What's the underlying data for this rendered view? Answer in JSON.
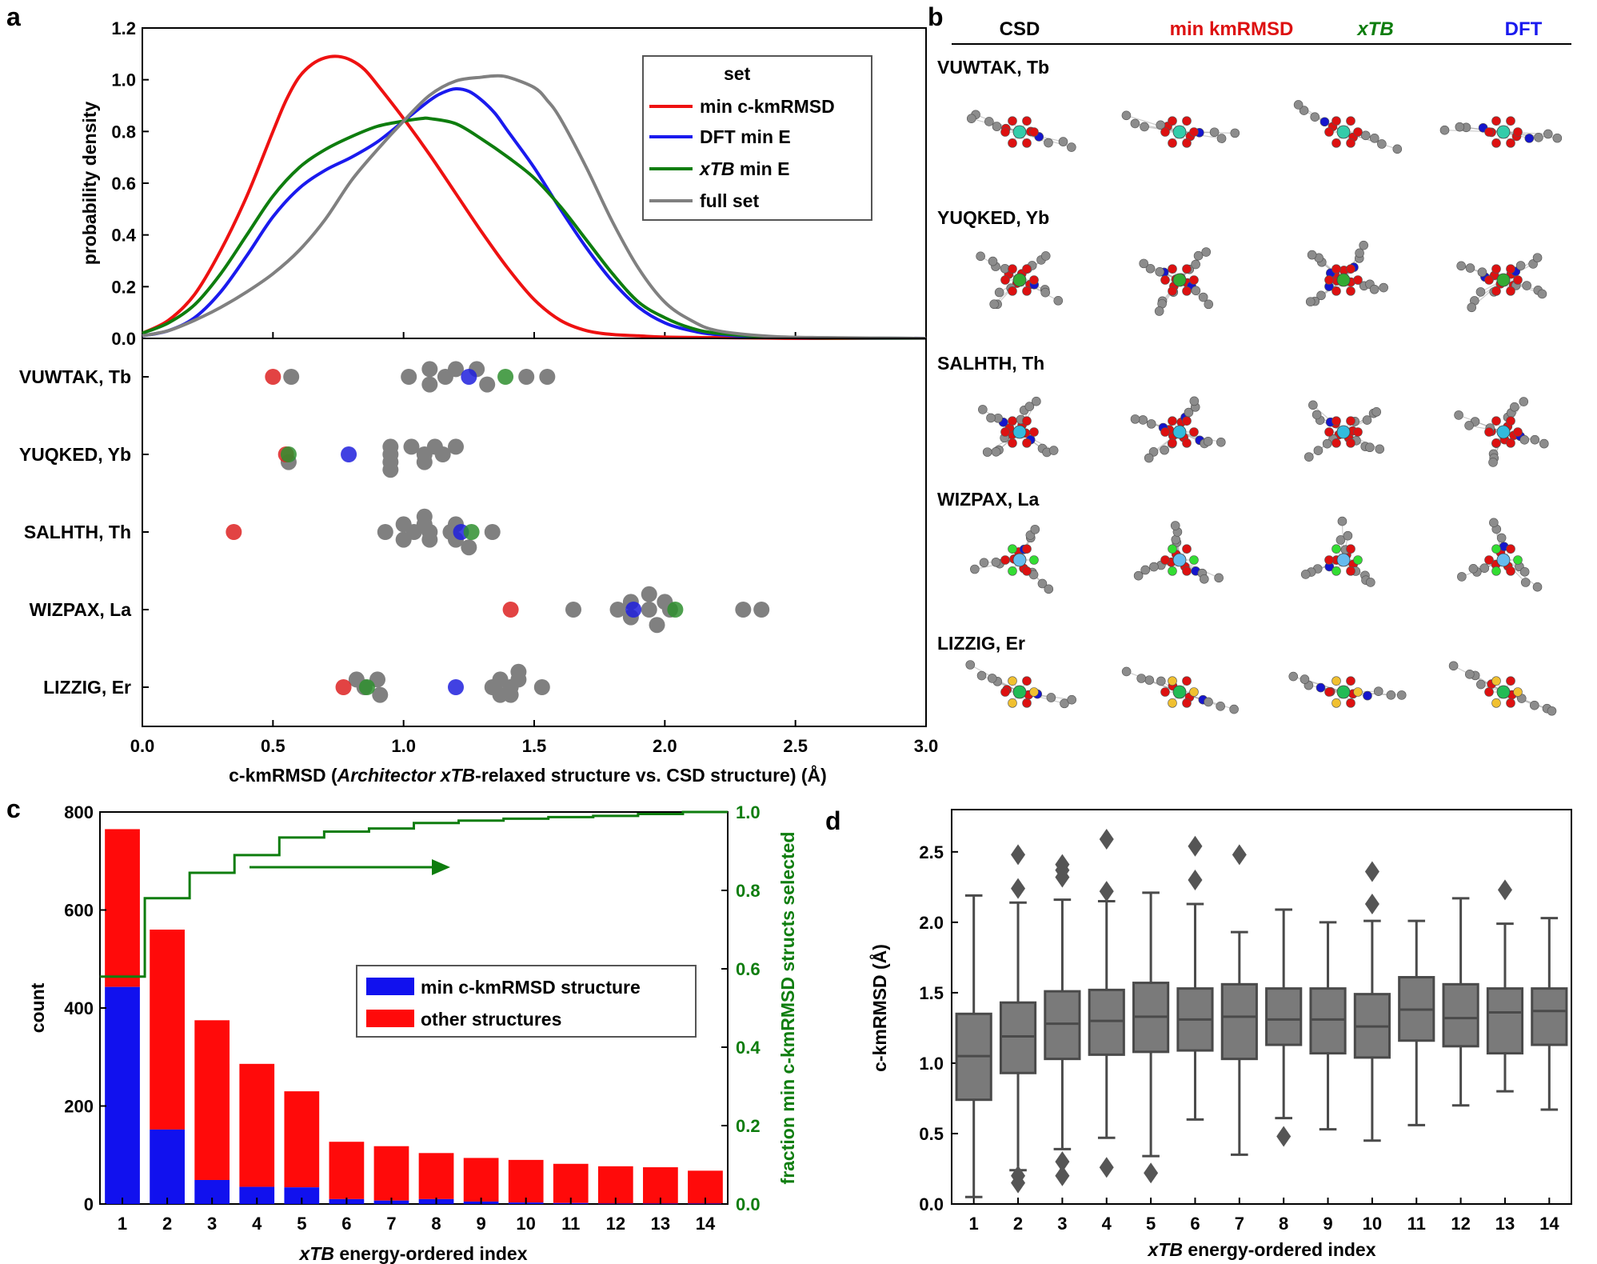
{
  "panel_letters": {
    "a": "a",
    "b": "b",
    "c": "c",
    "d": "d"
  },
  "colors": {
    "red": "#ee1111",
    "blue": "#1a1aee",
    "green": "#0e7d0e",
    "gray": "#808080",
    "bar_blue": "#1111ee",
    "bar_red": "#ff0a0a",
    "box_fill": "#7a7a7a",
    "box_edge": "#4a4a4a",
    "atom_gray": "#8c8c8c",
    "atom_red": "#dd1111",
    "atom_blue": "#1515cc",
    "atom_green": "#33dd33",
    "atom_yellow": "#f0c030",
    "atom_cyan": "#33bbdd",
    "atom_teal": "#33ccaa"
  },
  "chart_data": [
    {
      "id": "a-top",
      "type": "line",
      "title": "",
      "xlabel": "",
      "ylabel": "probability density",
      "xlim": [
        0,
        3
      ],
      "ylim": [
        0,
        1.2
      ],
      "yticks": [
        "0.0",
        "0.2",
        "0.4",
        "0.6",
        "0.8",
        "1.0",
        "1.2"
      ],
      "legend": {
        "title": "set",
        "position": "top-right"
      },
      "series": [
        {
          "name": "min c-kmRMSD",
          "color": "#ee1111",
          "x": [
            0,
            0.1,
            0.2,
            0.3,
            0.4,
            0.5,
            0.55,
            0.6,
            0.65,
            0.7,
            0.75,
            0.8,
            0.85,
            0.9,
            1.0,
            1.1,
            1.2,
            1.3,
            1.4,
            1.5,
            1.6,
            1.7,
            1.8,
            1.9,
            2.0,
            2.2,
            2.4,
            2.6,
            3.0
          ],
          "y": [
            0.02,
            0.07,
            0.17,
            0.34,
            0.55,
            0.8,
            0.92,
            1.01,
            1.06,
            1.085,
            1.09,
            1.075,
            1.04,
            0.98,
            0.85,
            0.71,
            0.56,
            0.41,
            0.27,
            0.15,
            0.07,
            0.03,
            0.015,
            0.01,
            0.005,
            0.003,
            0.001,
            0,
            0
          ]
        },
        {
          "name": "DFT min E",
          "color": "#1a1aee",
          "x": [
            0,
            0.1,
            0.2,
            0.3,
            0.4,
            0.5,
            0.6,
            0.7,
            0.8,
            0.9,
            1.0,
            1.1,
            1.15,
            1.2,
            1.25,
            1.3,
            1.35,
            1.4,
            1.5,
            1.6,
            1.7,
            1.8,
            1.9,
            2.0,
            2.1,
            2.2,
            2.4,
            2.6,
            3.0
          ],
          "y": [
            0.01,
            0.03,
            0.08,
            0.18,
            0.32,
            0.47,
            0.58,
            0.65,
            0.7,
            0.76,
            0.84,
            0.92,
            0.95,
            0.965,
            0.955,
            0.92,
            0.87,
            0.8,
            0.66,
            0.5,
            0.35,
            0.22,
            0.12,
            0.06,
            0.03,
            0.015,
            0.005,
            0.002,
            0
          ]
        },
        {
          "name": "xTB min E",
          "color": "#0e7d0e",
          "x": [
            0,
            0.1,
            0.2,
            0.3,
            0.4,
            0.5,
            0.6,
            0.7,
            0.8,
            0.9,
            1.0,
            1.07,
            1.1,
            1.2,
            1.3,
            1.4,
            1.5,
            1.6,
            1.7,
            1.8,
            1.9,
            2.0,
            2.1,
            2.2,
            2.4,
            2.6,
            3.0
          ],
          "y": [
            0.02,
            0.06,
            0.13,
            0.25,
            0.4,
            0.55,
            0.66,
            0.73,
            0.78,
            0.82,
            0.84,
            0.85,
            0.85,
            0.83,
            0.77,
            0.7,
            0.62,
            0.51,
            0.38,
            0.25,
            0.14,
            0.08,
            0.04,
            0.02,
            0.006,
            0.002,
            0
          ]
        },
        {
          "name": "full set",
          "color": "#808080",
          "x": [
            0,
            0.1,
            0.2,
            0.3,
            0.4,
            0.5,
            0.6,
            0.7,
            0.8,
            0.9,
            1.0,
            1.1,
            1.2,
            1.3,
            1.35,
            1.4,
            1.5,
            1.55,
            1.6,
            1.7,
            1.8,
            1.9,
            2.0,
            2.1,
            2.2,
            2.4,
            2.6,
            3.0
          ],
          "y": [
            0.01,
            0.03,
            0.07,
            0.12,
            0.18,
            0.25,
            0.34,
            0.46,
            0.61,
            0.73,
            0.84,
            0.94,
            0.995,
            1.01,
            1.015,
            1.01,
            0.97,
            0.92,
            0.85,
            0.66,
            0.45,
            0.27,
            0.14,
            0.07,
            0.03,
            0.008,
            0.003,
            0
          ]
        }
      ]
    },
    {
      "id": "a-bottom",
      "type": "scatter",
      "xlabel_parts": [
        "c-kmRMSD (",
        "Architector xTB",
        "-relaxed structure vs. CSD structure) (Å)"
      ],
      "xlim": [
        0,
        3
      ],
      "xticks": [
        "0.0",
        "0.5",
        "1.0",
        "1.5",
        "2.0",
        "2.5",
        "3.0"
      ],
      "categories": [
        "VUWTAK, Tb",
        "YUQKED, Yb",
        "SALHTH, Th",
        "WIZPAX, La",
        "LIZZIG, Er"
      ],
      "points": [
        {
          "row": 0,
          "x": 0.5,
          "dy": 0,
          "c": "red"
        },
        {
          "row": 0,
          "x": 0.57,
          "dy": 0,
          "c": "gray"
        },
        {
          "row": 0,
          "x": 1.02,
          "dy": 0,
          "c": "gray"
        },
        {
          "row": 0,
          "x": 1.1,
          "dy": -0.8,
          "c": "gray"
        },
        {
          "row": 0,
          "x": 1.16,
          "dy": 0,
          "c": "gray"
        },
        {
          "row": 0,
          "x": 1.1,
          "dy": 0.8,
          "c": "gray"
        },
        {
          "row": 0,
          "x": 1.2,
          "dy": -0.8,
          "c": "gray"
        },
        {
          "row": 0,
          "x": 1.25,
          "dy": 0,
          "c": "blue"
        },
        {
          "row": 0,
          "x": 1.28,
          "dy": -0.8,
          "c": "gray"
        },
        {
          "row": 0,
          "x": 1.32,
          "dy": 0.8,
          "c": "gray"
        },
        {
          "row": 0,
          "x": 1.39,
          "dy": 0,
          "c": "green"
        },
        {
          "row": 0,
          "x": 1.47,
          "dy": 0,
          "c": "gray"
        },
        {
          "row": 0,
          "x": 1.55,
          "dy": 0,
          "c": "gray"
        },
        {
          "row": 1,
          "x": 0.55,
          "dy": 0,
          "c": "red"
        },
        {
          "row": 1,
          "x": 0.56,
          "dy": 0,
          "c": "green"
        },
        {
          "row": 1,
          "x": 0.56,
          "dy": 0.8,
          "c": "gray"
        },
        {
          "row": 1,
          "x": 0.79,
          "dy": 0,
          "c": "blue"
        },
        {
          "row": 1,
          "x": 0.95,
          "dy": -0.8,
          "c": "gray"
        },
        {
          "row": 1,
          "x": 0.95,
          "dy": 0,
          "c": "gray"
        },
        {
          "row": 1,
          "x": 0.95,
          "dy": 0.8,
          "c": "gray"
        },
        {
          "row": 1,
          "x": 0.95,
          "dy": 1.6,
          "c": "gray"
        },
        {
          "row": 1,
          "x": 1.03,
          "dy": -0.8,
          "c": "gray"
        },
        {
          "row": 1,
          "x": 1.08,
          "dy": 0,
          "c": "gray"
        },
        {
          "row": 1,
          "x": 1.08,
          "dy": 0.8,
          "c": "gray"
        },
        {
          "row": 1,
          "x": 1.12,
          "dy": -0.8,
          "c": "gray"
        },
        {
          "row": 1,
          "x": 1.15,
          "dy": 0,
          "c": "gray"
        },
        {
          "row": 1,
          "x": 1.2,
          "dy": -0.8,
          "c": "gray"
        },
        {
          "row": 2,
          "x": 0.35,
          "dy": 0,
          "c": "red"
        },
        {
          "row": 2,
          "x": 0.93,
          "dy": 0,
          "c": "gray"
        },
        {
          "row": 2,
          "x": 1.0,
          "dy": -0.8,
          "c": "gray"
        },
        {
          "row": 2,
          "x": 1.0,
          "dy": 0.8,
          "c": "gray"
        },
        {
          "row": 2,
          "x": 1.04,
          "dy": 0,
          "c": "gray"
        },
        {
          "row": 2,
          "x": 1.08,
          "dy": -1.6,
          "c": "gray"
        },
        {
          "row": 2,
          "x": 1.08,
          "dy": -0.8,
          "c": "gray"
        },
        {
          "row": 2,
          "x": 1.1,
          "dy": 0,
          "c": "gray"
        },
        {
          "row": 2,
          "x": 1.1,
          "dy": 0.8,
          "c": "gray"
        },
        {
          "row": 2,
          "x": 1.18,
          "dy": 0,
          "c": "gray"
        },
        {
          "row": 2,
          "x": 1.2,
          "dy": -0.8,
          "c": "gray"
        },
        {
          "row": 2,
          "x": 1.2,
          "dy": 0.8,
          "c": "gray"
        },
        {
          "row": 2,
          "x": 1.22,
          "dy": 0,
          "c": "blue"
        },
        {
          "row": 2,
          "x": 1.26,
          "dy": 0,
          "c": "green"
        },
        {
          "row": 2,
          "x": 1.25,
          "dy": 1.6,
          "c": "gray"
        },
        {
          "row": 2,
          "x": 1.34,
          "dy": 0,
          "c": "gray"
        },
        {
          "row": 3,
          "x": 1.41,
          "dy": 0,
          "c": "red"
        },
        {
          "row": 3,
          "x": 1.65,
          "dy": 0,
          "c": "gray"
        },
        {
          "row": 3,
          "x": 1.82,
          "dy": 0,
          "c": "gray"
        },
        {
          "row": 3,
          "x": 1.87,
          "dy": -0.8,
          "c": "gray"
        },
        {
          "row": 3,
          "x": 1.88,
          "dy": 0,
          "c": "blue"
        },
        {
          "row": 3,
          "x": 1.87,
          "dy": 0.8,
          "c": "gray"
        },
        {
          "row": 3,
          "x": 1.94,
          "dy": -1.6,
          "c": "gray"
        },
        {
          "row": 3,
          "x": 1.94,
          "dy": 0,
          "c": "gray"
        },
        {
          "row": 3,
          "x": 1.97,
          "dy": 1.6,
          "c": "gray"
        },
        {
          "row": 3,
          "x": 2.0,
          "dy": -0.8,
          "c": "gray"
        },
        {
          "row": 3,
          "x": 2.02,
          "dy": 0,
          "c": "gray"
        },
        {
          "row": 3,
          "x": 2.04,
          "dy": 0,
          "c": "green"
        },
        {
          "row": 3,
          "x": 2.3,
          "dy": 0,
          "c": "gray"
        },
        {
          "row": 3,
          "x": 2.37,
          "dy": 0,
          "c": "gray"
        },
        {
          "row": 4,
          "x": 0.77,
          "dy": 0,
          "c": "red"
        },
        {
          "row": 4,
          "x": 0.82,
          "dy": -0.8,
          "c": "gray"
        },
        {
          "row": 4,
          "x": 0.85,
          "dy": 0,
          "c": "gray"
        },
        {
          "row": 4,
          "x": 0.86,
          "dy": 0,
          "c": "green"
        },
        {
          "row": 4,
          "x": 0.9,
          "dy": -0.8,
          "c": "gray"
        },
        {
          "row": 4,
          "x": 0.91,
          "dy": 0.8,
          "c": "gray"
        },
        {
          "row": 4,
          "x": 1.2,
          "dy": 0,
          "c": "blue"
        },
        {
          "row": 4,
          "x": 1.34,
          "dy": 0,
          "c": "gray"
        },
        {
          "row": 4,
          "x": 1.37,
          "dy": -0.8,
          "c": "gray"
        },
        {
          "row": 4,
          "x": 1.37,
          "dy": 0.8,
          "c": "gray"
        },
        {
          "row": 4,
          "x": 1.41,
          "dy": 0,
          "c": "gray"
        },
        {
          "row": 4,
          "x": 1.44,
          "dy": -0.8,
          "c": "gray"
        },
        {
          "row": 4,
          "x": 1.44,
          "dy": -1.6,
          "c": "gray"
        },
        {
          "row": 4,
          "x": 1.41,
          "dy": 0.8,
          "c": "gray"
        },
        {
          "row": 4,
          "x": 1.53,
          "dy": 0,
          "c": "gray"
        }
      ]
    },
    {
      "id": "c",
      "type": "bar",
      "stacked": true,
      "xlabel_parts": [
        "xTB",
        " energy-ordered index"
      ],
      "ylabel": "count",
      "y2label": "fraction min c-kmRMSD structs selected",
      "ylim": [
        0,
        800
      ],
      "y2lim": [
        0,
        1.0
      ],
      "yticks": [
        "0",
        "200",
        "400",
        "600",
        "800"
      ],
      "y2ticks": [
        "0.0",
        "0.2",
        "0.4",
        "0.6",
        "0.8",
        "1.0"
      ],
      "categories": [
        "1",
        "2",
        "3",
        "4",
        "5",
        "6",
        "7",
        "8",
        "9",
        "10",
        "11",
        "12",
        "13",
        "14"
      ],
      "series": [
        {
          "name": "min c-kmRMSD structure",
          "color": "#1111ee",
          "values": [
            443,
            152,
            49,
            35,
            34,
            10,
            7,
            10,
            5,
            3,
            2,
            1,
            1,
            1
          ]
        },
        {
          "name": "other structures",
          "color": "#ff0a0a",
          "values": [
            322,
            408,
            326,
            251,
            196,
            117,
            111,
            94,
            89,
            87,
            80,
            76,
            74,
            67
          ]
        }
      ],
      "cumulative_fraction": {
        "name": "fraction min c-kmRMSD structs selected",
        "color": "#0e7d0e",
        "values": [
          0.58,
          0.78,
          0.845,
          0.89,
          0.935,
          0.95,
          0.958,
          0.972,
          0.978,
          0.983,
          0.987,
          0.99,
          0.995,
          1.0
        ]
      }
    },
    {
      "id": "d",
      "type": "box",
      "xlabel_parts": [
        "xTB",
        " energy-ordered index"
      ],
      "ylabel": "c-kmRMSD (Å)",
      "ylim": [
        0,
        2.8
      ],
      "yticks": [
        "0.0",
        "0.5",
        "1.0",
        "1.5",
        "2.0",
        "2.5"
      ],
      "categories": [
        "1",
        "2",
        "3",
        "4",
        "5",
        "6",
        "7",
        "8",
        "9",
        "10",
        "11",
        "12",
        "13",
        "14"
      ],
      "boxes": [
        {
          "min": 0.05,
          "q1": 0.74,
          "med": 1.05,
          "q3": 1.35,
          "max": 2.19,
          "fliers": []
        },
        {
          "min": 0.24,
          "q1": 0.93,
          "med": 1.19,
          "q3": 1.43,
          "max": 2.14,
          "fliers": [
            0.15,
            0.2,
            2.24,
            2.48
          ]
        },
        {
          "min": 0.39,
          "q1": 1.03,
          "med": 1.28,
          "q3": 1.51,
          "max": 2.16,
          "fliers": [
            0.2,
            0.3,
            2.32,
            2.37,
            2.41
          ]
        },
        {
          "min": 0.47,
          "q1": 1.06,
          "med": 1.3,
          "q3": 1.52,
          "max": 2.15,
          "fliers": [
            0.26,
            2.22,
            2.59
          ]
        },
        {
          "min": 0.34,
          "q1": 1.08,
          "med": 1.33,
          "q3": 1.57,
          "max": 2.21,
          "fliers": [
            0.22
          ]
        },
        {
          "min": 0.6,
          "q1": 1.09,
          "med": 1.31,
          "q3": 1.53,
          "max": 2.13,
          "fliers": [
            2.3,
            2.54
          ]
        },
        {
          "min": 0.35,
          "q1": 1.03,
          "med": 1.33,
          "q3": 1.56,
          "max": 1.93,
          "fliers": [
            2.48
          ]
        },
        {
          "min": 0.61,
          "q1": 1.13,
          "med": 1.31,
          "q3": 1.53,
          "max": 2.09,
          "fliers": [
            0.48
          ]
        },
        {
          "min": 0.53,
          "q1": 1.07,
          "med": 1.31,
          "q3": 1.53,
          "max": 2.0,
          "fliers": []
        },
        {
          "min": 0.45,
          "q1": 1.04,
          "med": 1.26,
          "q3": 1.49,
          "max": 2.01,
          "fliers": [
            2.13,
            2.36
          ]
        },
        {
          "min": 0.56,
          "q1": 1.16,
          "med": 1.38,
          "q3": 1.61,
          "max": 2.01,
          "fliers": []
        },
        {
          "min": 0.7,
          "q1": 1.12,
          "med": 1.32,
          "q3": 1.56,
          "max": 2.17,
          "fliers": []
        },
        {
          "min": 0.8,
          "q1": 1.07,
          "med": 1.36,
          "q3": 1.53,
          "max": 1.99,
          "fliers": [
            2.23
          ]
        },
        {
          "min": 0.67,
          "q1": 1.13,
          "med": 1.37,
          "q3": 1.53,
          "max": 2.03,
          "fliers": []
        }
      ]
    }
  ],
  "panel_b": {
    "columns": [
      "CSD",
      "min kmRMSD",
      "xTB",
      "DFT"
    ],
    "column_colors": [
      "#000000",
      "#dd1111",
      "#0e7d0e",
      "#1a1aee"
    ],
    "rows": [
      "VUWTAK, Tb",
      "YUQKED, Yb",
      "SALHTH, Th",
      "WIZPAX, La",
      "LIZZIG, Er"
    ],
    "metal_colors": [
      "#33ccaa",
      "#33aa33",
      "#33bbdd",
      "#66bbee",
      "#22bb55"
    ]
  }
}
